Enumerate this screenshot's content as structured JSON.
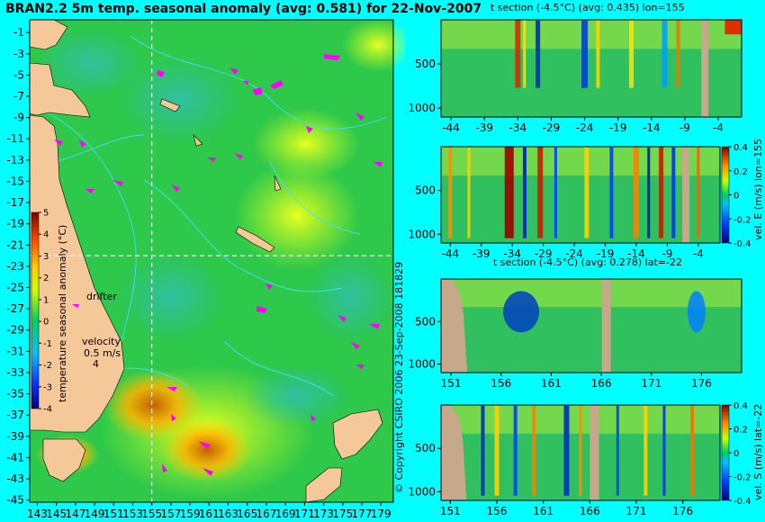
{
  "title": "BRAN2.2 5m temp. seasonal anomaly (avg: 0.581) for 22-Nov-2007",
  "copyright": "© Copyright CSIRO 2006  23-Sep-2008 181829",
  "colors": {
    "background": "#00ffff",
    "ocean": "#2ec84a",
    "land": "#f5c89a",
    "trajectory": "#ff00ff",
    "contour": "#40e0ff",
    "crosshair": "#ffffff",
    "section_land": "#c8a88a"
  },
  "chart_data": [
    {
      "type": "heatmap",
      "name": "map",
      "title": "BRAN2.2 5m temp. seasonal anomaly (avg: 0.581) for 22-Nov-2007",
      "x_ticks": [
        "143",
        "145",
        "147",
        "149",
        "151",
        "153",
        "155",
        "157",
        "159",
        "161",
        "163",
        "165",
        "167",
        "169",
        "171",
        "173",
        "175",
        "177",
        "179"
      ],
      "y_ticks": [
        "-1",
        "-3",
        "-5",
        "-7",
        "-9",
        "-11",
        "-13",
        "-15",
        "-17",
        "-19",
        "-21",
        "-23",
        "-25",
        "-27",
        "-29",
        "-31",
        "-33",
        "-35",
        "-37",
        "-39",
        "-41",
        "-43",
        "-45"
      ],
      "xlim": [
        142.2,
        180.3
      ],
      "ylim": [
        -45.2,
        0.2
      ],
      "crosshair": {
        "lon": 155,
        "lat": -22
      },
      "colorbar": {
        "label": "temperature seasonal anomaly (°C)",
        "ticks": [
          "5",
          "4",
          "3",
          "2",
          "1",
          "0",
          "-1",
          "-2",
          "-3",
          "-4"
        ],
        "range": [
          -4,
          5
        ]
      },
      "annotations": {
        "drifter": "drifter",
        "velocity": "velocity",
        "speed": "0.5 m/s",
        "arrows": "4"
      }
    },
    {
      "type": "heatmap",
      "name": "t-section-lon",
      "title": "t section (-4.5°C) (avg: 0.435) lon=155",
      "x_ticks": [
        "-44",
        "-39",
        "-34",
        "-29",
        "-24",
        "-19",
        "-14",
        "-9",
        "-4"
      ],
      "xlim": [
        -45.5,
        -0.5
      ],
      "y_ticks": [
        "500",
        "1000"
      ],
      "ylim": [
        1100,
        0
      ]
    },
    {
      "type": "heatmap",
      "name": "vel-e-section-lon",
      "title": "",
      "x_ticks": [
        "-44",
        "-39",
        "-34",
        "-29",
        "-24",
        "-19",
        "-14",
        "-9",
        "-4"
      ],
      "xlim": [
        -45.5,
        -0.5
      ],
      "y_ticks": [
        "500",
        "1000"
      ],
      "ylim": [
        1100,
        0
      ],
      "colorbar": {
        "label": "vel. E (m/s) lon=155",
        "ticks": [
          "0.4",
          "0.2",
          "0",
          "-0.2",
          "-0.4"
        ],
        "range": [
          -0.4,
          0.4
        ]
      }
    },
    {
      "type": "heatmap",
      "name": "t-section-lat",
      "title": "t section (-4.5°C) (avg: 0.278) lat=-22",
      "x_ticks": [
        "151",
        "156",
        "161",
        "166",
        "171",
        "176"
      ],
      "xlim": [
        150,
        180
      ],
      "y_ticks": [
        "500",
        "1000"
      ],
      "ylim": [
        1100,
        0
      ]
    },
    {
      "type": "heatmap",
      "name": "vel-s-section-lat",
      "title": "",
      "x_ticks": [
        "151",
        "156",
        "161",
        "166",
        "171",
        "176"
      ],
      "xlim": [
        150,
        180
      ],
      "y_ticks": [
        "500",
        "1000"
      ],
      "ylim": [
        1100,
        0
      ],
      "colorbar": {
        "label": "vel. S (m/s) lat=-22",
        "ticks": [
          "0.4",
          "0.2",
          "0",
          "-0.2",
          "-0.4"
        ],
        "range": [
          -0.4,
          0.4
        ]
      }
    }
  ]
}
